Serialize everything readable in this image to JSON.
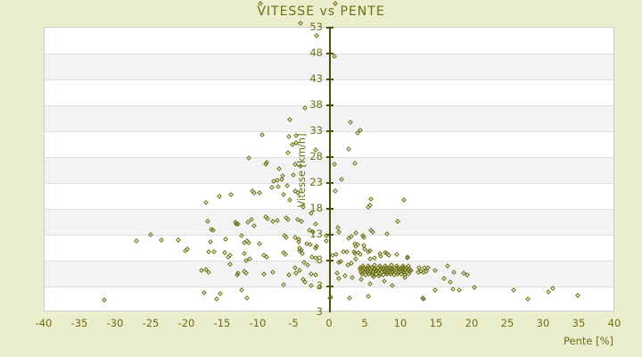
{
  "title": "VITESSE vs PENTE",
  "colors": {
    "background": "#ebeecd",
    "text": "#6c6f12",
    "axis_line": "#4a4e08",
    "marker": "#6d7013",
    "plot_background": "#ffffff",
    "band_fill": "#f3f3f3",
    "gridline": "#e0e0e0",
    "plot_border": "#cfcfcf"
  },
  "chart_data": {
    "type": "scatter",
    "title": "VITESSE vs PENTE",
    "xlabel": "Pente [%]",
    "ylabel": "Vitesse [km/h]",
    "xlim": [
      -40,
      40
    ],
    "ylim": [
      -2,
      53
    ],
    "x_ticks": [
      -40,
      -35,
      -30,
      -25,
      -20,
      -15,
      -10,
      -5,
      0,
      5,
      10,
      15,
      20,
      25,
      30,
      35,
      40
    ],
    "y_ticks": [
      53,
      48,
      43,
      38,
      33,
      28,
      23,
      18,
      13,
      8,
      3
    ],
    "y_axis_end_label": "3",
    "grid": "horizontal-bands",
    "legend": "none",
    "marker": "diamond",
    "points": [
      [
        -9.8,
        57.6
      ],
      [
        0.8,
        57.7
      ],
      [
        -4.1,
        53.8
      ],
      [
        -1.9,
        51.5
      ],
      [
        0.6,
        47.5
      ],
      [
        -3.5,
        37.4
      ],
      [
        -5.6,
        35.2
      ],
      [
        2.9,
        34.8
      ],
      [
        4.2,
        33.2
      ],
      [
        3.9,
        32.7
      ],
      [
        -9.5,
        32.3
      ],
      [
        -5.8,
        32.0
      ],
      [
        -4.8,
        32.2
      ],
      [
        -5.2,
        30.4
      ],
      [
        -4.7,
        30.8
      ],
      [
        -5.9,
        28.9
      ],
      [
        2.6,
        29.6
      ],
      [
        -2.0,
        29.4
      ],
      [
        -11.4,
        27.8
      ],
      [
        -8.9,
        27.0
      ],
      [
        -9.0,
        26.6
      ],
      [
        3.5,
        26.8
      ],
      [
        0.6,
        26.6
      ],
      [
        -4.9,
        26.6
      ],
      [
        -4.1,
        26.2
      ],
      [
        -7.1,
        25.8
      ],
      [
        -5.1,
        24.6
      ],
      [
        -6.6,
        24.4
      ],
      [
        -7.4,
        23.5
      ],
      [
        -6.7,
        23.7
      ],
      [
        1.6,
        23.7
      ],
      [
        -7.9,
        23.3
      ],
      [
        -7.2,
        22.3
      ],
      [
        -6.0,
        22.5
      ],
      [
        -8.1,
        22.1
      ],
      [
        0.8,
        21.5
      ],
      [
        -4.5,
        21.1
      ],
      [
        -4.9,
        21.4
      ],
      [
        -10.9,
        21.4
      ],
      [
        -10.6,
        21.1
      ],
      [
        -9.9,
        21.1
      ],
      [
        -15.5,
        20.4
      ],
      [
        -13.9,
        20.8
      ],
      [
        -6.5,
        20.8
      ],
      [
        -17.4,
        19.2
      ],
      [
        -5.6,
        19.7
      ],
      [
        5.8,
        19.9
      ],
      [
        10.4,
        19.7
      ],
      [
        -3.8,
        18.4
      ],
      [
        5.4,
        18.3
      ],
      [
        5.6,
        18.7
      ],
      [
        -2.6,
        17.2
      ],
      [
        -16.6,
        14.0
      ],
      [
        -13.1,
        15.1
      ],
      [
        -11.5,
        15.5
      ],
      [
        -11.0,
        16.0
      ],
      [
        -10.6,
        14.7
      ],
      [
        -13.3,
        15.4
      ],
      [
        -12.9,
        15.1
      ],
      [
        -9.0,
        16.4
      ],
      [
        -8.8,
        16.1
      ],
      [
        -8.0,
        15.6
      ],
      [
        -7.4,
        15.8
      ],
      [
        -6.1,
        16.3
      ],
      [
        -5.9,
        15.9
      ],
      [
        9.5,
        15.6
      ],
      [
        -4.5,
        15.9
      ],
      [
        -4.0,
        15.6
      ],
      [
        -2.0,
        15.1
      ],
      [
        1.1,
        14.4
      ],
      [
        1.3,
        13.5
      ],
      [
        5.8,
        13.9
      ],
      [
        6.0,
        13.5
      ],
      [
        8.0,
        13.2
      ],
      [
        -16.4,
        13.9
      ],
      [
        -2.9,
        13.9
      ],
      [
        -2.4,
        13.5
      ],
      [
        -17.1,
        15.6
      ],
      [
        3.6,
        13.3
      ],
      [
        -23.6,
        12.0
      ],
      [
        -21.3,
        12.0
      ],
      [
        -25.1,
        13.0
      ],
      [
        -27.1,
        11.8
      ],
      [
        -16.8,
        11.6
      ],
      [
        -14.6,
        12.1
      ],
      [
        -12.4,
        12.8
      ],
      [
        -12.0,
        11.4
      ],
      [
        -11.6,
        11.8
      ],
      [
        -11.4,
        11.4
      ],
      [
        -9.9,
        11.3
      ],
      [
        -6.4,
        12.8
      ],
      [
        -6.1,
        12.5
      ],
      [
        -4.4,
        11.6
      ],
      [
        -4.9,
        12.5
      ],
      [
        -4.4,
        12.1
      ],
      [
        -3.3,
        11.3
      ],
      [
        -2.8,
        11.1
      ],
      [
        -2.0,
        10.4
      ],
      [
        -1.9,
        10.8
      ],
      [
        -0.5,
        12.8
      ],
      [
        -0.5,
        11.8
      ],
      [
        2.6,
        12.3
      ],
      [
        3.0,
        12.6
      ],
      [
        4.6,
        12.8
      ],
      [
        4.8,
        12.5
      ],
      [
        3.5,
        11.3
      ],
      [
        3.9,
        11.1
      ],
      [
        3.6,
        10.8
      ],
      [
        4.8,
        10.9
      ],
      [
        4.9,
        10.2
      ],
      [
        -20.3,
        9.9
      ],
      [
        -20.0,
        10.2
      ],
      [
        -17.0,
        9.7
      ],
      [
        -14.8,
        9.5
      ],
      [
        -16.3,
        9.7
      ],
      [
        -14.3,
        8.7
      ],
      [
        -14.0,
        9.0
      ],
      [
        -12.0,
        9.4
      ],
      [
        -4.3,
        9.9
      ],
      [
        -3.9,
        9.4
      ],
      [
        -4.3,
        10.4
      ],
      [
        -4.0,
        10.1
      ],
      [
        1.9,
        9.7
      ],
      [
        2.4,
        9.7
      ],
      [
        0.9,
        9.2
      ],
      [
        0.4,
        9.0
      ],
      [
        3.4,
        9.7
      ],
      [
        3.5,
        9.4
      ],
      [
        4.0,
        9.6
      ],
      [
        4.3,
        9.2
      ],
      [
        5.4,
        9.7
      ],
      [
        5.6,
        9.9
      ],
      [
        7.0,
        9.4
      ],
      [
        7.8,
        9.6
      ],
      [
        8.0,
        9.4
      ],
      [
        9.4,
        9.2
      ],
      [
        10.9,
        8.7
      ],
      [
        -11.8,
        8.0
      ],
      [
        -11.3,
        8.3
      ],
      [
        -9.3,
        9.0
      ],
      [
        -8.9,
        8.7
      ],
      [
        -6.5,
        9.6
      ],
      [
        -6.3,
        9.2
      ],
      [
        10.9,
        8.5
      ],
      [
        5.6,
        8.4
      ],
      [
        6.3,
        8.5
      ],
      [
        3.6,
        8.3
      ],
      [
        7.1,
        8.9
      ],
      [
        8.3,
        9.0
      ],
      [
        -2.5,
        8.7
      ],
      [
        -2.0,
        8.5
      ],
      [
        1.5,
        7.9
      ],
      [
        1.3,
        7.6
      ],
      [
        2.5,
        7.2
      ],
      [
        3.0,
        7.4
      ],
      [
        -3.6,
        7.7
      ],
      [
        -3.1,
        7.2
      ],
      [
        -14.0,
        7.3
      ],
      [
        16.5,
        7.0
      ],
      [
        4.6,
        7.0
      ],
      [
        5.4,
        7.0
      ],
      [
        6.2,
        7.1
      ],
      [
        7.0,
        6.9
      ],
      [
        7.8,
        7.0
      ],
      [
        8.6,
        7.1
      ],
      [
        9.4,
        6.9
      ],
      [
        10.2,
        7.0
      ],
      [
        11.0,
        7.0
      ],
      [
        4.3,
        6.6
      ],
      [
        4.7,
        6.7
      ],
      [
        5.1,
        6.5
      ],
      [
        5.5,
        6.6
      ],
      [
        5.9,
        6.7
      ],
      [
        6.3,
        6.5
      ],
      [
        6.7,
        6.6
      ],
      [
        7.1,
        6.7
      ],
      [
        7.5,
        6.5
      ],
      [
        7.9,
        6.6
      ],
      [
        8.3,
        6.7
      ],
      [
        8.7,
        6.5
      ],
      [
        9.1,
        6.6
      ],
      [
        9.5,
        6.7
      ],
      [
        9.9,
        6.5
      ],
      [
        10.3,
        6.6
      ],
      [
        10.7,
        6.7
      ],
      [
        11.1,
        6.5
      ],
      [
        12.5,
        6.6
      ],
      [
        13.3,
        6.7
      ],
      [
        13.8,
        6.6
      ],
      [
        4.2,
        6.2
      ],
      [
        4.6,
        6.1
      ],
      [
        5.0,
        6.3
      ],
      [
        5.4,
        6.1
      ],
      [
        5.8,
        6.2
      ],
      [
        6.2,
        6.3
      ],
      [
        6.6,
        6.1
      ],
      [
        7.0,
        6.2
      ],
      [
        7.4,
        6.3
      ],
      [
        7.8,
        6.1
      ],
      [
        8.2,
        6.2
      ],
      [
        8.6,
        6.3
      ],
      [
        9.0,
        6.1
      ],
      [
        9.4,
        6.2
      ],
      [
        9.8,
        6.3
      ],
      [
        10.2,
        6.1
      ],
      [
        10.6,
        6.2
      ],
      [
        11.0,
        6.3
      ],
      [
        11.4,
        6.1
      ],
      [
        14.8,
        6.1
      ],
      [
        4.4,
        5.8
      ],
      [
        4.8,
        5.7
      ],
      [
        5.2,
        5.9
      ],
      [
        5.6,
        5.7
      ],
      [
        6.0,
        5.8
      ],
      [
        6.4,
        5.9
      ],
      [
        6.8,
        5.7
      ],
      [
        7.2,
        5.8
      ],
      [
        7.6,
        5.9
      ],
      [
        8.0,
        5.7
      ],
      [
        8.4,
        5.8
      ],
      [
        8.8,
        5.9
      ],
      [
        9.2,
        5.7
      ],
      [
        9.6,
        5.8
      ],
      [
        10.0,
        5.9
      ],
      [
        10.4,
        5.7
      ],
      [
        10.8,
        5.8
      ],
      [
        11.2,
        5.9
      ],
      [
        12.4,
        5.8
      ],
      [
        12.7,
        5.9
      ],
      [
        13.1,
        5.7
      ],
      [
        13.5,
        5.9
      ],
      [
        17.4,
        5.8
      ],
      [
        18.8,
        5.6
      ],
      [
        4.5,
        5.4
      ],
      [
        5.0,
        5.3
      ],
      [
        5.5,
        5.5
      ],
      [
        6.0,
        5.3
      ],
      [
        6.5,
        5.4
      ],
      [
        7.0,
        5.5
      ],
      [
        7.5,
        5.3
      ],
      [
        8.0,
        5.4
      ],
      [
        8.5,
        5.5
      ],
      [
        9.0,
        5.3
      ],
      [
        9.5,
        5.4
      ],
      [
        10.0,
        5.5
      ],
      [
        10.5,
        5.3
      ],
      [
        11.0,
        5.4
      ],
      [
        -18.0,
        6.1
      ],
      [
        -17.0,
        5.8
      ],
      [
        -17.4,
        6.3
      ],
      [
        -13.0,
        5.2
      ],
      [
        -12.9,
        5.6
      ],
      [
        -12.0,
        5.9
      ],
      [
        -11.8,
        5.6
      ],
      [
        -9.3,
        5.4
      ],
      [
        -8.0,
        5.8
      ],
      [
        -5.8,
        5.2
      ],
      [
        -4.8,
        5.6
      ],
      [
        -2.6,
        5.4
      ],
      [
        -2.0,
        5.2
      ],
      [
        -4.9,
        6.6
      ],
      [
        -4.3,
        6.1
      ],
      [
        1.0,
        5.6
      ],
      [
        2.1,
        5.1
      ],
      [
        6.1,
        4.9
      ],
      [
        6.9,
        5.1
      ],
      [
        7.6,
        4.1
      ],
      [
        5.6,
        3.6
      ],
      [
        4.4,
        4.4
      ],
      [
        3.1,
        4.7
      ],
      [
        1.3,
        4.6
      ],
      [
        8.8,
        3.2
      ],
      [
        10.5,
        4.7
      ],
      [
        16.0,
        4.6
      ],
      [
        16.9,
        3.9
      ],
      [
        19.3,
        5.2
      ],
      [
        -3.8,
        4.3
      ],
      [
        -3.5,
        3.8
      ],
      [
        -1.5,
        3.0
      ],
      [
        -2.6,
        3.2
      ],
      [
        -6.5,
        3.3
      ],
      [
        14.8,
        2.3
      ],
      [
        13.1,
        0.6
      ],
      [
        -17.6,
        1.8
      ],
      [
        -15.4,
        1.6
      ],
      [
        -12.4,
        2.3
      ],
      [
        -15.9,
        0.6
      ],
      [
        -11.6,
        0.8
      ],
      [
        -31.6,
        0.4
      ],
      [
        0.0,
        0.8
      ],
      [
        0.1,
        1.0
      ],
      [
        2.8,
        0.8
      ],
      [
        5.4,
        1.1
      ],
      [
        13.0,
        0.8
      ],
      [
        17.3,
        2.5
      ],
      [
        18.1,
        2.3
      ],
      [
        20.3,
        2.9
      ],
      [
        25.8,
        2.3
      ],
      [
        27.8,
        0.6
      ],
      [
        30.6,
        2.0
      ],
      [
        31.2,
        2.7
      ],
      [
        34.8,
        1.2
      ]
    ]
  }
}
